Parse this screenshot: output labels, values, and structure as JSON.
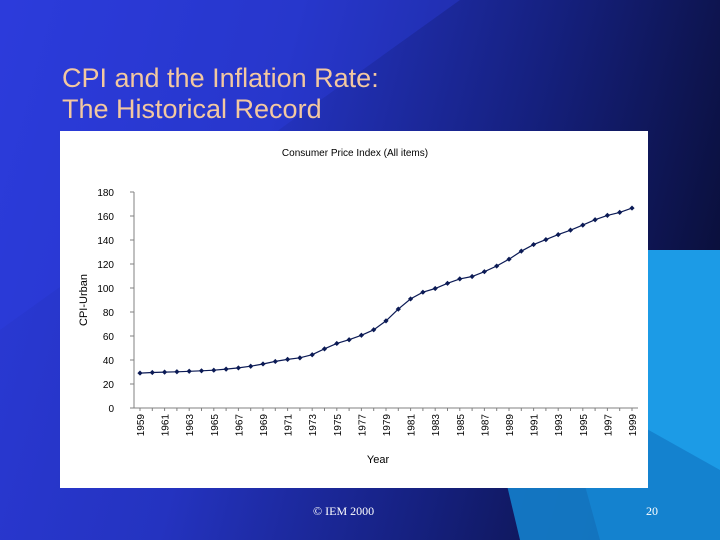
{
  "slide": {
    "title_line1": "CPI and the Inflation Rate:",
    "title_line2": "The Historical Record",
    "footer_copyright": "© IEM 2000",
    "page_number": "20",
    "colors": {
      "background": "#2433c0",
      "title": "#f3c8a0",
      "accent_cyan": "#1c9be6",
      "series": "#0b1a55"
    }
  },
  "chart_data": {
    "type": "line",
    "title": "Consumer Price Index (All items)",
    "xlabel": "Year",
    "ylabel": "CPI-Urban",
    "ylim": [
      0,
      180
    ],
    "yticks": [
      0,
      20,
      40,
      60,
      80,
      100,
      120,
      140,
      160,
      180
    ],
    "xtick_labels": [
      "1959",
      "1961",
      "1963",
      "1965",
      "1967",
      "1969",
      "1971",
      "1973",
      "1975",
      "1977",
      "1979",
      "1981",
      "1983",
      "1985",
      "1987",
      "1989",
      "1991",
      "1993",
      "1995",
      "1997",
      "1999"
    ],
    "grid": false,
    "legend": "none",
    "series": [
      {
        "x": [
          1959,
          1960,
          1961,
          1962,
          1963,
          1964,
          1965,
          1966,
          1967,
          1968,
          1969,
          1970,
          1971,
          1972,
          1973,
          1974,
          1975,
          1976,
          1977,
          1978,
          1979,
          1980,
          1981,
          1982,
          1983,
          1984,
          1985,
          1986,
          1987,
          1988,
          1989,
          1990,
          1991,
          1992,
          1993,
          1994,
          1995,
          1996,
          1997,
          1998,
          1999
        ],
        "values": [
          29.1,
          29.6,
          29.9,
          30.2,
          30.6,
          31.0,
          31.5,
          32.4,
          33.4,
          34.8,
          36.7,
          38.8,
          40.5,
          41.8,
          44.4,
          49.3,
          53.8,
          56.9,
          60.6,
          65.2,
          72.6,
          82.4,
          90.9,
          96.5,
          99.6,
          103.9,
          107.6,
          109.6,
          113.6,
          118.3,
          124.0,
          130.7,
          136.2,
          140.3,
          144.5,
          148.2,
          152.4,
          156.9,
          160.5,
          163.0,
          166.6
        ]
      }
    ]
  }
}
